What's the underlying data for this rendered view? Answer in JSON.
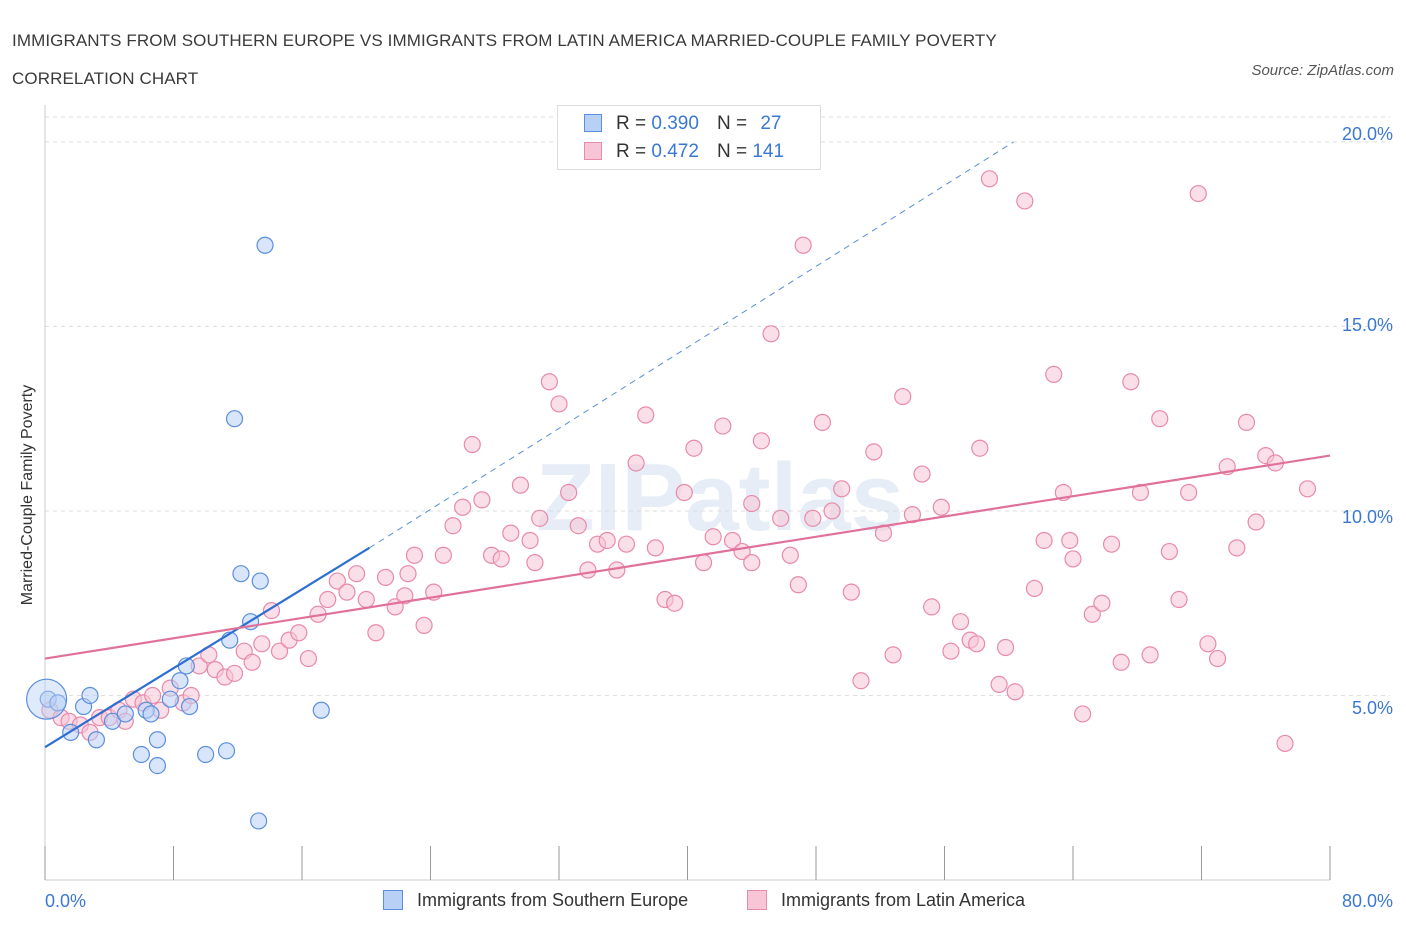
{
  "title": "IMMIGRANTS FROM SOUTHERN EUROPE VS IMMIGRANTS FROM LATIN AMERICA MARRIED-COUPLE FAMILY POVERTY CORRELATION CHART",
  "source": "Source: ZipAtlas.com",
  "watermark": "ZIPatlas",
  "legend": {
    "series1": {
      "r_label": "R =",
      "r_value": "0.390",
      "n_label": "N =",
      "n_value": "27"
    },
    "series2": {
      "r_label": "R =",
      "r_value": "0.472",
      "n_label": "N =",
      "n_value": "141"
    }
  },
  "colors": {
    "blue_fill": "#b8d0f5",
    "blue_stroke": "#5b8fdd",
    "blue_line": "#2e6fd0",
    "pink_fill": "#f8c5d6",
    "pink_stroke": "#e88aaa",
    "pink_line": "#e0719a",
    "tick_text": "#3a78d4",
    "grid": "#dddddd"
  },
  "chart_data": {
    "type": "scatter",
    "title": "IMMIGRANTS FROM SOUTHERN EUROPE VS IMMIGRANTS FROM LATIN AMERICA MARRIED-COUPLE FAMILY POVERTY CORRELATION CHART",
    "xlabel": "",
    "ylabel": "Married-Couple Family Poverty",
    "xlim": [
      0,
      80
    ],
    "ylim": [
      0,
      21
    ],
    "x_tick_labels": [
      "0.0%",
      "80.0%"
    ],
    "y_ticks": [
      5,
      10,
      15,
      20
    ],
    "y_tick_labels": [
      "5.0%",
      "10.0%",
      "15.0%",
      "20.0%"
    ],
    "series": [
      {
        "name": "Immigrants from Southern Europe",
        "R": 0.39,
        "N": 27,
        "trend": {
          "x0": 0,
          "y0": 3.6,
          "x1": 20.2,
          "y1": 9.0,
          "dash_to_x": 60.3,
          "dash_to_y": 20.0
        },
        "points": [
          [
            0.2,
            4.9
          ],
          [
            0.8,
            4.8
          ],
          [
            1.6,
            4.0
          ],
          [
            2.4,
            4.7
          ],
          [
            2.8,
            5.0
          ],
          [
            3.2,
            3.8
          ],
          [
            4.2,
            4.3
          ],
          [
            5.0,
            4.5
          ],
          [
            6.0,
            3.4
          ],
          [
            6.3,
            4.6
          ],
          [
            6.6,
            4.5
          ],
          [
            7.0,
            3.8
          ],
          [
            7.0,
            3.1
          ],
          [
            7.8,
            4.9
          ],
          [
            8.4,
            5.4
          ],
          [
            8.8,
            5.8
          ],
          [
            9.0,
            4.7
          ],
          [
            10.0,
            3.4
          ],
          [
            11.5,
            6.5
          ],
          [
            11.8,
            12.5
          ],
          [
            11.3,
            3.5
          ],
          [
            12.2,
            8.3
          ],
          [
            12.8,
            7.0
          ],
          [
            13.4,
            8.1
          ],
          [
            13.3,
            1.6
          ],
          [
            13.7,
            17.2
          ],
          [
            17.2,
            4.6
          ]
        ]
      },
      {
        "name": "Immigrants from Latin America",
        "R": 0.472,
        "N": 141,
        "trend": {
          "x0": 0,
          "y0": 6.0,
          "x1": 80,
          "y1": 11.5
        },
        "points": [
          [
            0.3,
            4.6
          ],
          [
            1.0,
            4.4
          ],
          [
            1.5,
            4.3
          ],
          [
            2.2,
            4.2
          ],
          [
            2.8,
            4.0
          ],
          [
            3.4,
            4.4
          ],
          [
            4.0,
            4.4
          ],
          [
            4.6,
            4.6
          ],
          [
            5.0,
            4.3
          ],
          [
            5.5,
            4.9
          ],
          [
            6.1,
            4.8
          ],
          [
            6.7,
            5.0
          ],
          [
            7.2,
            4.6
          ],
          [
            7.8,
            5.2
          ],
          [
            8.6,
            4.8
          ],
          [
            9.1,
            5.0
          ],
          [
            9.6,
            5.8
          ],
          [
            10.2,
            6.1
          ],
          [
            10.6,
            5.7
          ],
          [
            11.2,
            5.5
          ],
          [
            11.8,
            5.6
          ],
          [
            12.4,
            6.2
          ],
          [
            12.9,
            5.9
          ],
          [
            13.5,
            6.4
          ],
          [
            14.1,
            7.3
          ],
          [
            14.6,
            6.2
          ],
          [
            15.2,
            6.5
          ],
          [
            15.8,
            6.7
          ],
          [
            16.4,
            6.0
          ],
          [
            17.0,
            7.2
          ],
          [
            17.6,
            7.6
          ],
          [
            18.2,
            8.1
          ],
          [
            18.8,
            7.8
          ],
          [
            19.4,
            8.3
          ],
          [
            20.0,
            7.6
          ],
          [
            20.6,
            6.7
          ],
          [
            21.2,
            8.2
          ],
          [
            21.8,
            7.4
          ],
          [
            22.4,
            7.7
          ],
          [
            23.0,
            8.8
          ],
          [
            23.6,
            6.9
          ],
          [
            24.2,
            7.8
          ],
          [
            24.8,
            8.8
          ],
          [
            25.4,
            9.6
          ],
          [
            26.0,
            10.1
          ],
          [
            26.6,
            11.8
          ],
          [
            27.2,
            10.3
          ],
          [
            27.8,
            8.8
          ],
          [
            28.4,
            8.7
          ],
          [
            29.0,
            9.4
          ],
          [
            29.6,
            10.7
          ],
          [
            30.2,
            9.2
          ],
          [
            30.8,
            9.8
          ],
          [
            31.4,
            13.5
          ],
          [
            32.0,
            12.9
          ],
          [
            32.6,
            10.5
          ],
          [
            33.2,
            9.6
          ],
          [
            33.8,
            8.4
          ],
          [
            34.4,
            9.1
          ],
          [
            35.0,
            9.2
          ],
          [
            35.6,
            8.4
          ],
          [
            36.2,
            9.1
          ],
          [
            36.8,
            11.3
          ],
          [
            37.4,
            12.6
          ],
          [
            38.0,
            9.0
          ],
          [
            38.6,
            7.6
          ],
          [
            39.2,
            7.5
          ],
          [
            39.8,
            10.5
          ],
          [
            40.4,
            11.7
          ],
          [
            41.0,
            8.6
          ],
          [
            41.6,
            9.3
          ],
          [
            42.2,
            12.3
          ],
          [
            42.8,
            9.2
          ],
          [
            43.4,
            8.9
          ],
          [
            44.0,
            10.2
          ],
          [
            44.6,
            11.9
          ],
          [
            45.2,
            14.8
          ],
          [
            45.8,
            9.8
          ],
          [
            46.4,
            8.8
          ],
          [
            46.9,
            8.0
          ],
          [
            47.2,
            17.2
          ],
          [
            47.8,
            9.8
          ],
          [
            48.4,
            12.4
          ],
          [
            49.0,
            10.0
          ],
          [
            49.6,
            10.6
          ],
          [
            50.2,
            7.8
          ],
          [
            50.8,
            5.4
          ],
          [
            51.6,
            11.6
          ],
          [
            52.2,
            9.4
          ],
          [
            52.8,
            6.1
          ],
          [
            53.4,
            13.1
          ],
          [
            54.0,
            9.9
          ],
          [
            54.6,
            11.0
          ],
          [
            55.2,
            7.4
          ],
          [
            55.8,
            10.1
          ],
          [
            56.4,
            6.2
          ],
          [
            57.0,
            7.0
          ],
          [
            57.6,
            6.5
          ],
          [
            58.2,
            11.7
          ],
          [
            58.8,
            19.0
          ],
          [
            59.4,
            5.3
          ],
          [
            59.8,
            6.3
          ],
          [
            60.4,
            5.1
          ],
          [
            61.0,
            18.4
          ],
          [
            61.6,
            7.9
          ],
          [
            62.2,
            9.2
          ],
          [
            62.8,
            13.7
          ],
          [
            63.4,
            10.5
          ],
          [
            64.0,
            8.7
          ],
          [
            64.6,
            4.5
          ],
          [
            65.2,
            7.2
          ],
          [
            65.8,
            7.5
          ],
          [
            66.4,
            9.1
          ],
          [
            67.0,
            5.9
          ],
          [
            67.6,
            13.5
          ],
          [
            68.2,
            10.5
          ],
          [
            68.8,
            6.1
          ],
          [
            69.4,
            12.5
          ],
          [
            70.0,
            8.9
          ],
          [
            70.6,
            7.6
          ],
          [
            71.2,
            10.5
          ],
          [
            71.8,
            18.6
          ],
          [
            72.4,
            6.4
          ],
          [
            73.0,
            6.0
          ],
          [
            73.6,
            11.2
          ],
          [
            74.2,
            9.0
          ],
          [
            74.8,
            12.4
          ],
          [
            75.4,
            9.7
          ],
          [
            76.0,
            11.5
          ],
          [
            76.6,
            11.3
          ],
          [
            77.2,
            3.7
          ],
          [
            78.6,
            10.6
          ],
          [
            63.8,
            9.2
          ],
          [
            30.5,
            8.6
          ],
          [
            22.6,
            8.3
          ],
          [
            44.0,
            8.6
          ],
          [
            58.0,
            6.4
          ]
        ]
      }
    ]
  },
  "bottom_legend": {
    "series1_label": "Immigrants from Southern Europe",
    "series2_label": "Immigrants from Latin America"
  },
  "axis": {
    "x_min_label": "0.0%",
    "x_max_label": "80.0%",
    "y_labels": [
      "20.0%",
      "15.0%",
      "10.0%",
      "5.0%"
    ]
  }
}
